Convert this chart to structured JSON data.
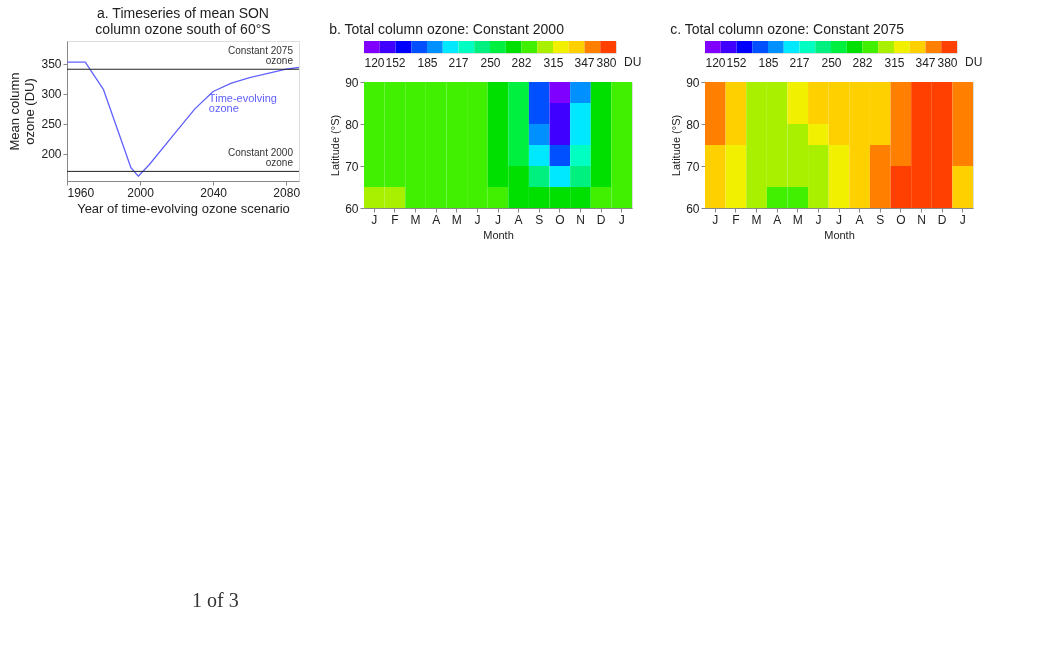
{
  "chart_data": [
    {
      "type": "line",
      "title": "a. Timeseries of mean SON\ncolumn ozone south of 60°S",
      "xlabel": "Year of time-evolving ozone scenario",
      "ylabel": "Mean column\nozone (DU)",
      "xlim": [
        1960,
        2087
      ],
      "xticks": [
        1960,
        2000,
        2040,
        2080
      ],
      "ylim": [
        155,
        388
      ],
      "yticks": [
        200,
        250,
        300,
        350
      ],
      "series": [
        {
          "name": "Time-evolving ozone",
          "color": "#6060ff",
          "x": [
            1960,
            1970,
            1980,
            1995,
            1999,
            2005,
            2020,
            2030,
            2040,
            2050,
            2060,
            2070,
            2080,
            2087
          ],
          "values": [
            353,
            353,
            307,
            177,
            163,
            182,
            238,
            275,
            304,
            318,
            327,
            334,
            341,
            344
          ]
        }
      ],
      "ref_lines": [
        {
          "axis": "y",
          "value": 341,
          "label": "Constant 2075\nozone"
        },
        {
          "axis": "y",
          "value": 171,
          "label": "Constant 2000\nozone"
        }
      ],
      "annotations": [
        "1 of 3"
      ]
    },
    {
      "type": "heatmap",
      "title": "b. Total column ozone: Constant 2000",
      "xlabel": "Month",
      "ylabel": "Latitude (°S)",
      "clabel": "DU",
      "categories": [
        "J",
        "F",
        "M",
        "A",
        "M",
        "J",
        "J",
        "A",
        "S",
        "O",
        "N",
        "D",
        "J"
      ],
      "ylim": [
        60,
        90
      ],
      "yticks": [
        60,
        70,
        80,
        90
      ],
      "y": [
        87.5,
        82.5,
        77.5,
        72.5,
        67.5,
        62.5
      ],
      "clim": [
        120,
        380
      ],
      "cticks": [
        120,
        152,
        185,
        217,
        250,
        282,
        315,
        347,
        380
      ],
      "colors": [
        "#8000ff",
        "#4000ff",
        "#0000ff",
        "#0050ff",
        "#0090ff",
        "#00e8ff",
        "#00ffc0",
        "#00f080",
        "#00f040",
        "#00e000",
        "#40f000",
        "#a8f000",
        "#f0f000",
        "#ffd000",
        "#ff8000",
        "#ff4000"
      ],
      "cells": [
        [
          290,
          290,
          290,
          290,
          290,
          290,
          280,
          255,
          175,
          130,
          200,
          275,
          290
        ],
        [
          290,
          290,
          290,
          290,
          290,
          290,
          280,
          258,
          180,
          140,
          205,
          278,
          290
        ],
        [
          290,
          290,
          290,
          290,
          290,
          290,
          280,
          262,
          190,
          150,
          210,
          280,
          290
        ],
        [
          290,
          290,
          290,
          290,
          290,
          290,
          282,
          265,
          205,
          170,
          220,
          282,
          290
        ],
        [
          290,
          290,
          290,
          290,
          290,
          290,
          282,
          270,
          240,
          215,
          245,
          282,
          290
        ],
        [
          300,
          300,
          290,
          290,
          290,
          290,
          285,
          280,
          275,
          270,
          278,
          285,
          295
        ]
      ]
    },
    {
      "type": "heatmap",
      "title": "c. Total column ozone: Constant 2075",
      "xlabel": "Month",
      "ylabel": "Latitude (°S)",
      "clabel": "DU",
      "categories": [
        "J",
        "F",
        "M",
        "A",
        "M",
        "J",
        "J",
        "A",
        "S",
        "O",
        "N",
        "D",
        "J"
      ],
      "ylim": [
        60,
        90
      ],
      "yticks": [
        60,
        70,
        80,
        90
      ],
      "y": [
        87.5,
        82.5,
        77.5,
        72.5,
        67.5,
        62.5
      ],
      "clim": [
        120,
        380
      ],
      "cticks": [
        120,
        152,
        185,
        217,
        250,
        282,
        315,
        347,
        380
      ],
      "colors": [
        "#8000ff",
        "#4000ff",
        "#0000ff",
        "#0050ff",
        "#0090ff",
        "#00e8ff",
        "#00ffc0",
        "#00f080",
        "#00f040",
        "#00e000",
        "#40f000",
        "#a8f000",
        "#f0f000",
        "#ffd000",
        "#ff8000",
        "#ff4000"
      ],
      "cells": [
        [
          360,
          335,
          310,
          310,
          315,
          335,
          335,
          335,
          340,
          355,
          365,
          372,
          360
        ],
        [
          360,
          335,
          310,
          310,
          320,
          335,
          335,
          335,
          340,
          355,
          365,
          372,
          360
        ],
        [
          355,
          335,
          310,
          310,
          312,
          330,
          335,
          335,
          345,
          360,
          366,
          370,
          355
        ],
        [
          345,
          330,
          310,
          310,
          310,
          310,
          325,
          335,
          350,
          362,
          366,
          366,
          350
        ],
        [
          335,
          330,
          310,
          308,
          308,
          310,
          315,
          335,
          355,
          366,
          368,
          366,
          345
        ],
        [
          335,
          315,
          305,
          295,
          295,
          310,
          315,
          335,
          360,
          368,
          370,
          368,
          335
        ]
      ]
    }
  ]
}
